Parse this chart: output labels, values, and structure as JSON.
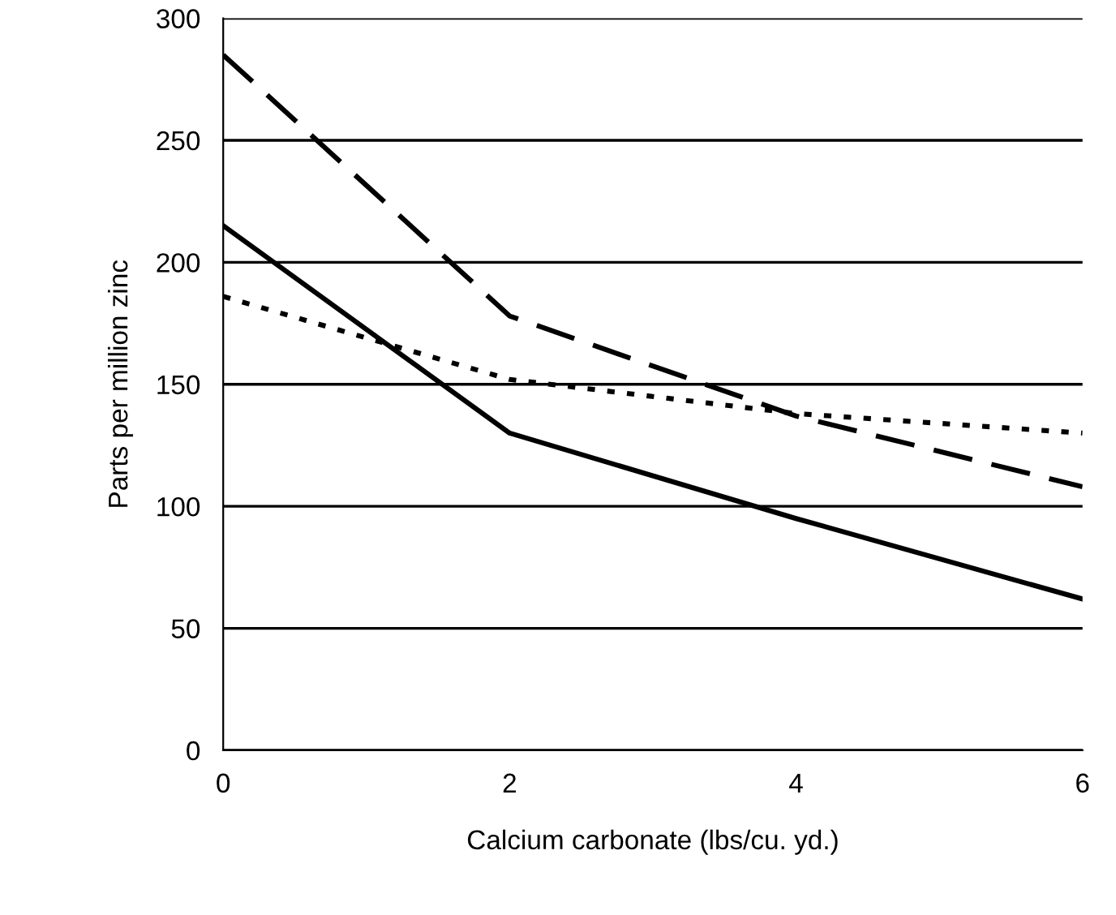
{
  "chart_data": {
    "type": "line",
    "xlabel": "Calcium carbonate (lbs/cu. yd.)",
    "ylabel": "Parts per million zinc",
    "x": [
      0,
      2,
      4,
      6
    ],
    "series": [
      {
        "color": "#000000",
        "line_style": "solid",
        "values": [
          215,
          130,
          95,
          62
        ]
      },
      {
        "color": "#000000",
        "line_style": "dashed",
        "values": [
          285,
          178,
          137,
          108
        ]
      },
      {
        "color": "#000000",
        "line_style": "dotted",
        "values": [
          186,
          152,
          138,
          130
        ]
      }
    ],
    "xlim": [
      0,
      6
    ],
    "xticks": [
      0,
      2,
      4,
      6
    ],
    "ylim": [
      0,
      300
    ],
    "yticks": [
      0,
      50,
      100,
      150,
      200,
      250,
      300
    ],
    "grid": "y",
    "marker": "none"
  }
}
